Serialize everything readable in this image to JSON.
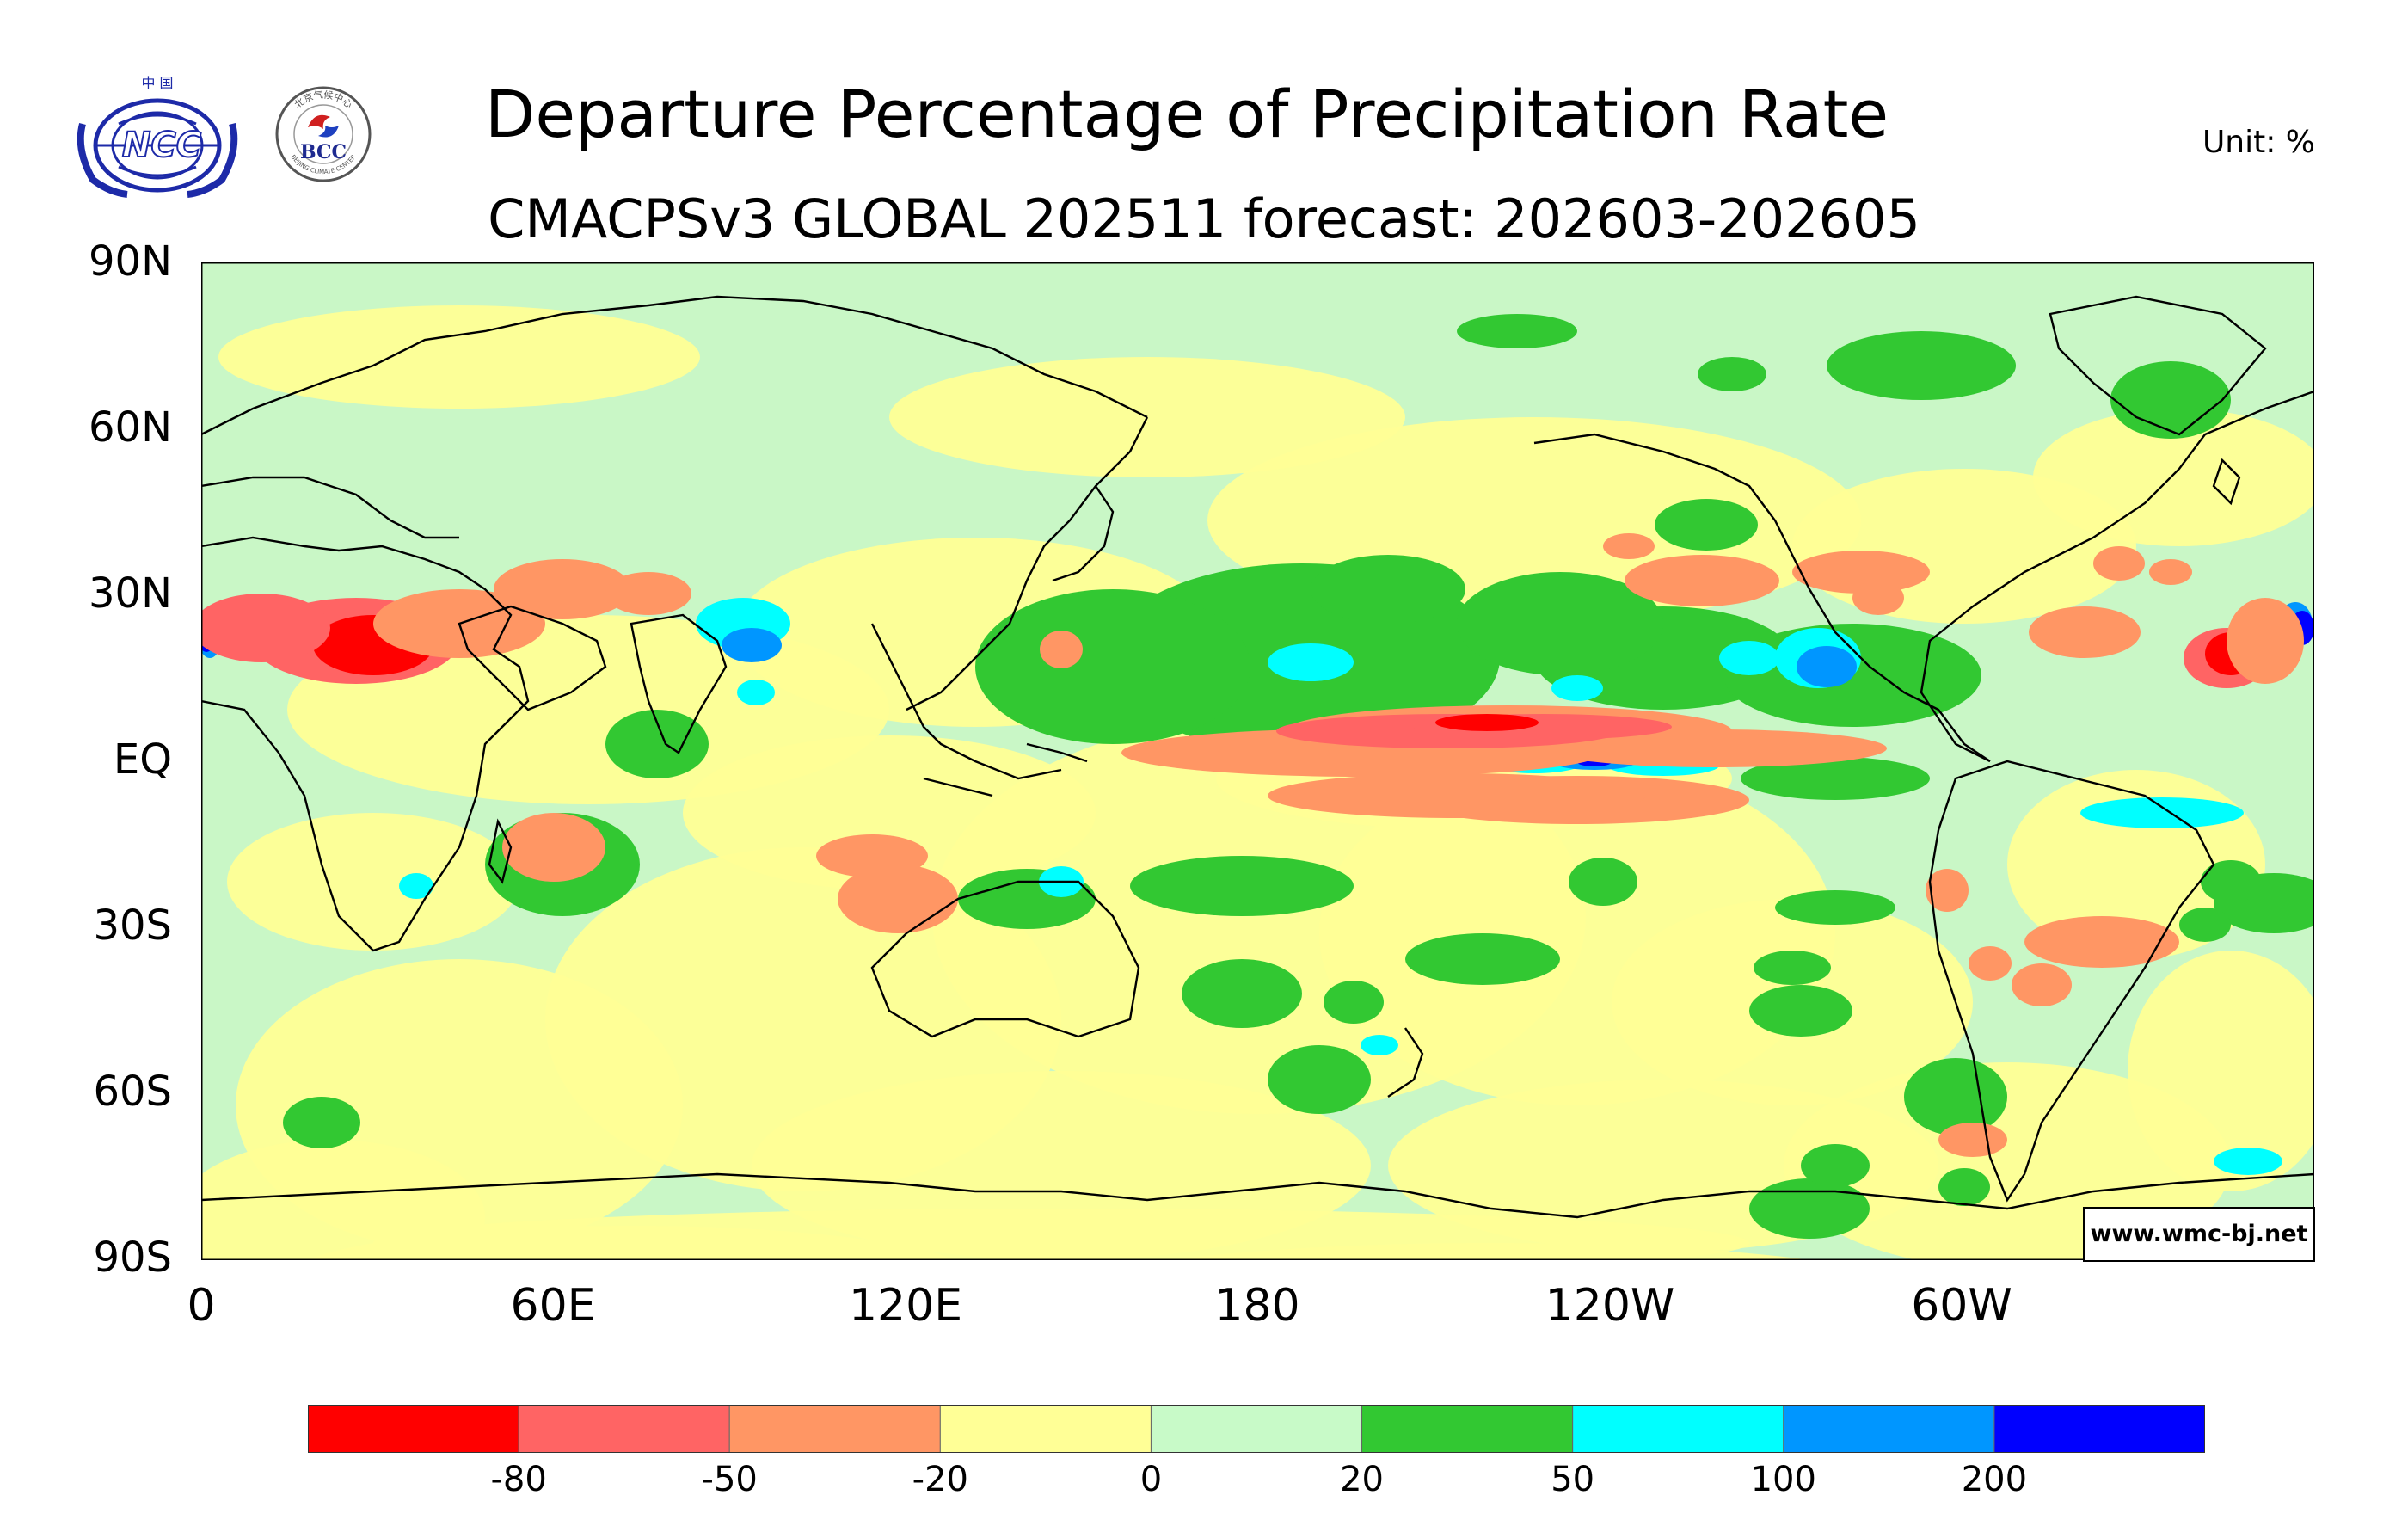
{
  "title": "Departure Percentage of Precipitation Rate",
  "subtitle": "CMACPSv3 GLOBAL 202511 forecast: 202603-202605",
  "unit": "Unit:  %",
  "watermark": "www.wmc-bj.net",
  "logos": {
    "ncc": {
      "top_text": "中 国",
      "mark": "NCC"
    },
    "bcc": {
      "mark": "BCC",
      "ring_text": "北京气候中心",
      "ring_text_en": "BEIJING CLIMATE CENTER"
    }
  },
  "lat_axis": [
    "90N",
    "60N",
    "30N",
    "EQ",
    "30S",
    "60S",
    "90S"
  ],
  "lon_axis": [
    "0",
    "60E",
    "120E",
    "180",
    "120W",
    "60W"
  ],
  "colors": {
    "bg": "#ffffff",
    "map_base": "#c9f7c6",
    "coast": "#000000"
  },
  "legend": {
    "colors": [
      "#ff0000",
      "#ff6464",
      "#ff9664",
      "#ffff96",
      "#c8fac8",
      "#32c832",
      "#00ffff",
      "#0096ff",
      "#0000ff"
    ],
    "labels": [
      "-80",
      "-50",
      "-20",
      "0",
      "20",
      "50",
      "100",
      "200"
    ]
  }
}
